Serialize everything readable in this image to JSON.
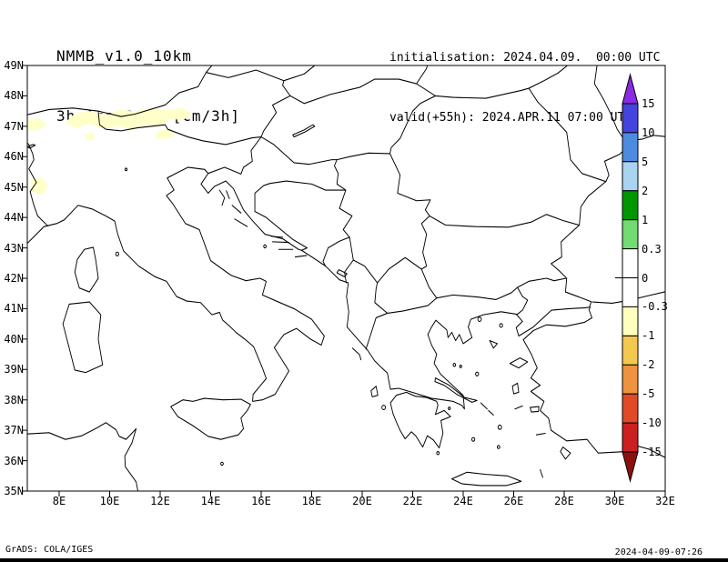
{
  "header": {
    "model": "NMMB_v1.0_10km",
    "field": "3h Acc.Snow [cm/3h]",
    "init": "initialisation: 2024.04.09.  00:00 UTC",
    "valid": "valid(+55h): 2024.APR.11 07:00 UTC"
  },
  "axes": {
    "y_ticks": [
      "49N",
      "48N",
      "47N",
      "46N",
      "45N",
      "44N",
      "43N",
      "42N",
      "41N",
      "40N",
      "39N",
      "38N",
      "37N",
      "36N",
      "35N"
    ],
    "x_ticks": [
      "8E",
      "10E",
      "12E",
      "14E",
      "16E",
      "18E",
      "20E",
      "22E",
      "24E",
      "26E",
      "28E",
      "30E",
      "32E"
    ]
  },
  "colorbar": {
    "labels": [
      "15",
      "10",
      "5",
      "2",
      "1",
      "0.3",
      "0",
      "-0.3",
      "-1",
      "-2",
      "-5",
      "-10",
      "-15"
    ],
    "top_arrow_color": "#8a2be2",
    "segment_colors": [
      "#4343dd",
      "#4d8be0",
      "#a8d4f0",
      "#009600",
      "#72db72",
      "#ffffff",
      "#ffffff",
      "#ffffbe",
      "#f3c84e",
      "#ee9340",
      "#e04a28",
      "#cc2020"
    ],
    "bottom_arrow_color": "#8d1010"
  },
  "map": {
    "snow_color": "#ffffc8",
    "line_color": "#000000"
  },
  "footer": {
    "left": "GrADS: COLA/IGES",
    "right": "2024-04-09-07:26"
  },
  "chart_data": {
    "type": "heatmap",
    "title": "3h Acc.Snow [cm/3h]",
    "model": "NMMB_v1.0_10km",
    "init_time": "2024.04.09. 00:00 UTC",
    "valid_time": "2024.APR.11 07:00 UTC (+55h)",
    "lon_range_east": [
      8,
      32
    ],
    "lat_range_north": [
      35,
      49
    ],
    "colorbar_levels": [
      15,
      10,
      5,
      2,
      1,
      0.3,
      0,
      -0.3,
      -1,
      -2,
      -5,
      -10,
      -15
    ],
    "shaded_regions": [
      {
        "area": "Alps approx 8.2E-13.3E, 46.4N-47.6N",
        "bin": "pale-yellow bin (light accumulation)"
      },
      {
        "area": "Western Alps approx 6.8E-7.6E, 44.7N-45.3N",
        "bin": "pale-yellow bin (light accumulation)"
      }
    ]
  }
}
